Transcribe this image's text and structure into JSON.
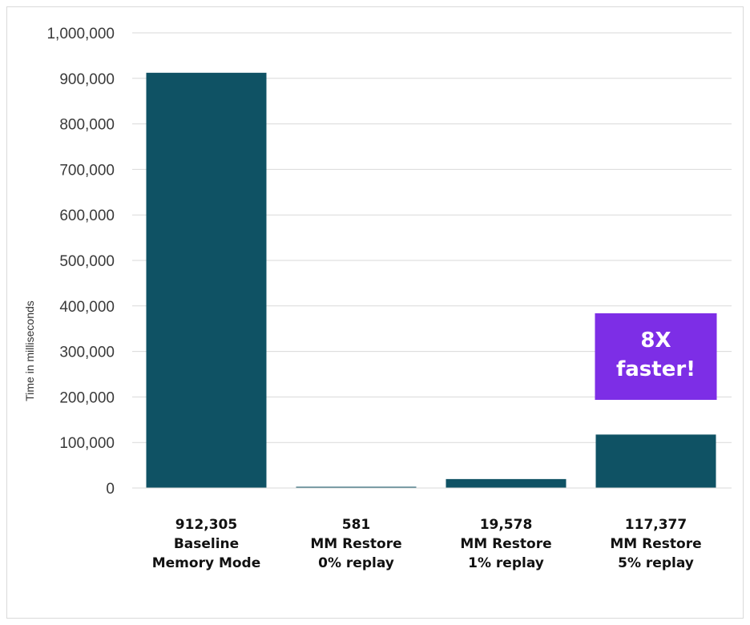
{
  "chart_data": {
    "type": "bar",
    "ylabel": "Time in milliseconds",
    "xlabel": "",
    "ylim": [
      0,
      1000000
    ],
    "yticks": [
      "0",
      "100,000",
      "200,000",
      "300,000",
      "400,000",
      "500,000",
      "600,000",
      "700,000",
      "800,000",
      "900,000",
      "1,000,000"
    ],
    "ytick_values": [
      0,
      100000,
      200000,
      300000,
      400000,
      500000,
      600000,
      700000,
      800000,
      900000,
      1000000
    ],
    "grid": true,
    "categories": [
      [
        "912,305",
        "Baseline",
        "Memory Mode"
      ],
      [
        "581",
        "MM Restore",
        "0% replay"
      ],
      [
        "19,578",
        "MM Restore",
        "1% replay"
      ],
      [
        "117,377",
        "MM Restore",
        "5% replay"
      ]
    ],
    "values": [
      912305,
      581,
      19578,
      117377
    ],
    "bar_color": "#0f5264",
    "annotation": {
      "lines": [
        "8X",
        "faster!"
      ],
      "color": "#7d2ee6",
      "category_index": 3
    }
  }
}
